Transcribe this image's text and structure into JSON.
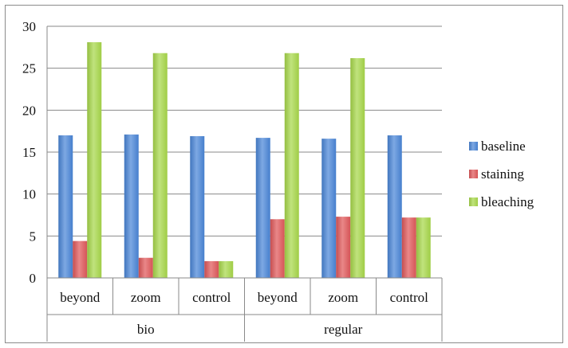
{
  "chart_data": {
    "type": "bar",
    "title": "",
    "xlabel": "",
    "ylabel": "",
    "ylim": [
      0,
      30
    ],
    "yticks": [
      0,
      5,
      10,
      15,
      20,
      25,
      30
    ],
    "grid": true,
    "legend_position": "right",
    "categories": [
      "beyond",
      "zoom",
      "control",
      "beyond",
      "zoom",
      "control"
    ],
    "groups": [
      {
        "label": "bio",
        "categories": [
          "beyond",
          "zoom",
          "control"
        ]
      },
      {
        "label": "regular",
        "categories": [
          "beyond",
          "zoom",
          "control"
        ]
      }
    ],
    "series": [
      {
        "name": "baseline",
        "color": "#4a86d8",
        "values": [
          17.0,
          17.1,
          16.9,
          16.7,
          16.6,
          17.0
        ]
      },
      {
        "name": "staining",
        "color": "#e0585a",
        "values": [
          4.4,
          2.4,
          2.0,
          7.0,
          7.3,
          7.2
        ]
      },
      {
        "name": "bleaching",
        "color": "#a8d84a",
        "values": [
          28.1,
          26.8,
          2.0,
          26.8,
          26.2,
          7.2
        ]
      }
    ]
  }
}
